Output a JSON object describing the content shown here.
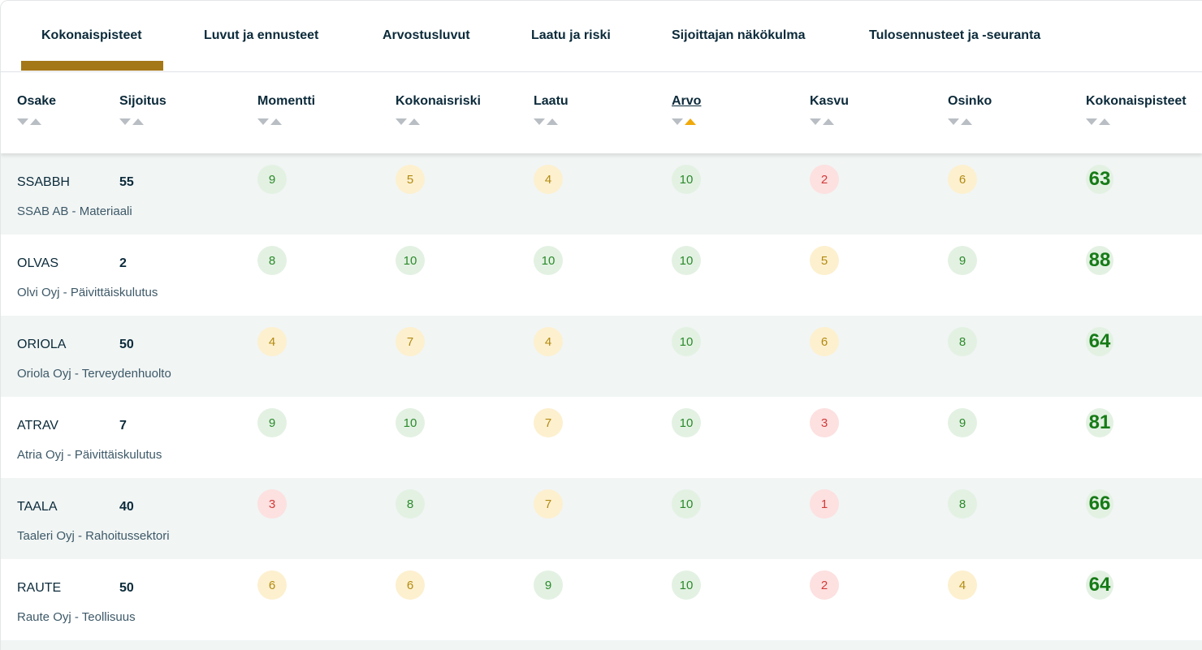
{
  "tabs": [
    {
      "label": "Kokonaispisteet"
    },
    {
      "label": "Luvut ja ennusteet"
    },
    {
      "label": "Arvostusluvut"
    },
    {
      "label": "Laatu ja riski"
    },
    {
      "label": "Sijoittajan näkökulma"
    },
    {
      "label": "Tulosennusteet ja -seuranta"
    }
  ],
  "active_tab": "Kokonaispisteet",
  "columns": [
    "Osake",
    "Sijoitus",
    "Momentti",
    "Kokonaisriski",
    "Laatu",
    "Arvo",
    "Kasvu",
    "Osinko",
    "Kokonaispisteet"
  ],
  "sorted_column": "Arvo",
  "colors": {
    "accent": "#a47717",
    "green": "#2b8a2b",
    "yellow": "#b28a10",
    "red": "#d23a3a",
    "sort_active": "#f0a90a"
  },
  "rows": [
    {
      "ticker": "SSABBH",
      "sijoitus": "55",
      "company": "SSAB AB - Materiaali",
      "scores": [
        {
          "v": "9",
          "c": "green"
        },
        {
          "v": "5",
          "c": "yellow"
        },
        {
          "v": "4",
          "c": "yellow"
        },
        {
          "v": "10",
          "c": "green"
        },
        {
          "v": "2",
          "c": "red"
        },
        {
          "v": "6",
          "c": "yellow"
        }
      ],
      "total": "63"
    },
    {
      "ticker": "OLVAS",
      "sijoitus": "2",
      "company": "Olvi Oyj - Päivittäiskulutus",
      "scores": [
        {
          "v": "8",
          "c": "green"
        },
        {
          "v": "10",
          "c": "green"
        },
        {
          "v": "10",
          "c": "green"
        },
        {
          "v": "10",
          "c": "green"
        },
        {
          "v": "5",
          "c": "yellow"
        },
        {
          "v": "9",
          "c": "green"
        }
      ],
      "total": "88"
    },
    {
      "ticker": "ORIOLA",
      "sijoitus": "50",
      "company": "Oriola Oyj - Terveydenhuolto",
      "scores": [
        {
          "v": "4",
          "c": "yellow"
        },
        {
          "v": "7",
          "c": "yellow"
        },
        {
          "v": "4",
          "c": "yellow"
        },
        {
          "v": "10",
          "c": "green"
        },
        {
          "v": "6",
          "c": "yellow"
        },
        {
          "v": "8",
          "c": "green"
        }
      ],
      "total": "64"
    },
    {
      "ticker": "ATRAV",
      "sijoitus": "7",
      "company": "Atria Oyj - Päivittäiskulutus",
      "scores": [
        {
          "v": "9",
          "c": "green"
        },
        {
          "v": "10",
          "c": "green"
        },
        {
          "v": "7",
          "c": "yellow"
        },
        {
          "v": "10",
          "c": "green"
        },
        {
          "v": "3",
          "c": "red"
        },
        {
          "v": "9",
          "c": "green"
        }
      ],
      "total": "81"
    },
    {
      "ticker": "TAALA",
      "sijoitus": "40",
      "company": "Taaleri Oyj - Rahoitussektori",
      "scores": [
        {
          "v": "3",
          "c": "red"
        },
        {
          "v": "8",
          "c": "green"
        },
        {
          "v": "7",
          "c": "yellow"
        },
        {
          "v": "10",
          "c": "green"
        },
        {
          "v": "1",
          "c": "red"
        },
        {
          "v": "8",
          "c": "green"
        }
      ],
      "total": "66"
    },
    {
      "ticker": "RAUTE",
      "sijoitus": "50",
      "company": "Raute Oyj - Teollisuus",
      "scores": [
        {
          "v": "6",
          "c": "yellow"
        },
        {
          "v": "6",
          "c": "yellow"
        },
        {
          "v": "9",
          "c": "green"
        },
        {
          "v": "10",
          "c": "green"
        },
        {
          "v": "2",
          "c": "red"
        },
        {
          "v": "4",
          "c": "yellow"
        }
      ],
      "total": "64"
    }
  ]
}
